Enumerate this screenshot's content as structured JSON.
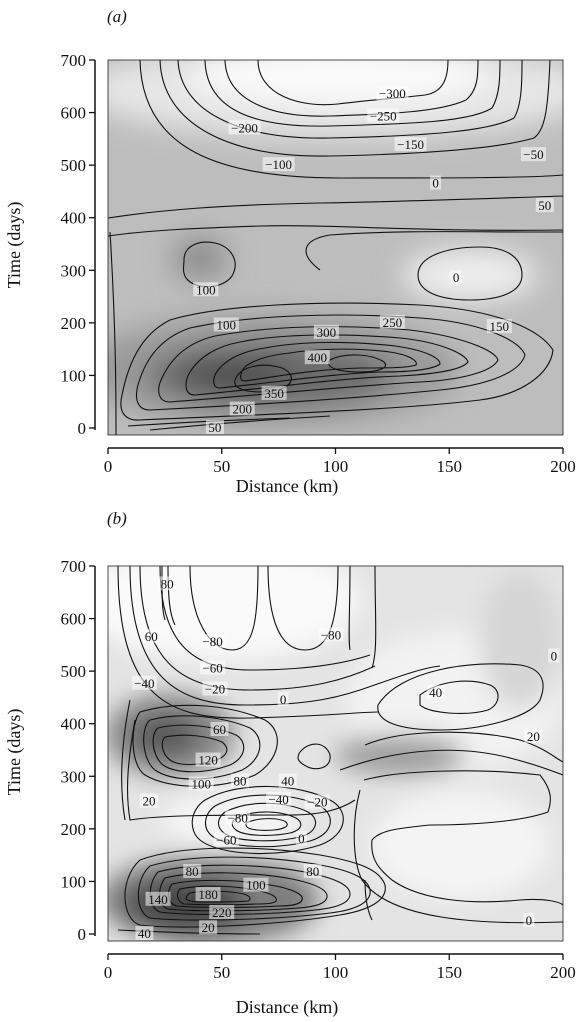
{
  "chart_data": [
    {
      "type": "contour",
      "panel_label": "(a)",
      "xlabel": "Distance (km)",
      "ylabel": "Time (days)",
      "xlim": [
        0,
        200
      ],
      "ylim": [
        0,
        700
      ],
      "x_ticks": [
        0,
        50,
        100,
        150,
        200
      ],
      "y_ticks": [
        0,
        100,
        200,
        300,
        400,
        500,
        600,
        700
      ],
      "contour_labels": [
        {
          "text": "−300",
          "x": 125,
          "y": 635
        },
        {
          "text": "−250",
          "x": 121,
          "y": 593
        },
        {
          "text": "−200",
          "x": 60,
          "y": 570
        },
        {
          "text": "−150",
          "x": 133,
          "y": 538
        },
        {
          "text": "−100",
          "x": 75,
          "y": 500
        },
        {
          "text": "−50",
          "x": 187,
          "y": 519
        },
        {
          "text": "0",
          "x": 144,
          "y": 465
        },
        {
          "text": "50",
          "x": 192,
          "y": 422
        },
        {
          "text": "100",
          "x": 43,
          "y": 262
        },
        {
          "text": "0",
          "x": 153,
          "y": 285
        },
        {
          "text": "100",
          "x": 52,
          "y": 195
        },
        {
          "text": "300",
          "x": 96,
          "y": 181
        },
        {
          "text": "250",
          "x": 125,
          "y": 200
        },
        {
          "text": "150",
          "x": 172,
          "y": 192
        },
        {
          "text": "400",
          "x": 92,
          "y": 133
        },
        {
          "text": "350",
          "x": 73,
          "y": 65
        },
        {
          "text": "200",
          "x": 59,
          "y": 35
        },
        {
          "text": "50",
          "x": 47,
          "y": 0
        }
      ]
    },
    {
      "type": "contour",
      "panel_label": "(b)",
      "xlabel": "Distance (km)",
      "ylabel": "Time (days)",
      "xlim": [
        0,
        200
      ],
      "ylim": [
        0,
        700
      ],
      "x_ticks": [
        0,
        50,
        100,
        150,
        200
      ],
      "y_ticks": [
        0,
        100,
        200,
        300,
        400,
        500,
        600,
        700
      ],
      "contour_labels": [
        {
          "text": "80",
          "x": 26,
          "y": 665
        },
        {
          "text": "60",
          "x": 19,
          "y": 565
        },
        {
          "text": "−80",
          "x": 46,
          "y": 555
        },
        {
          "text": "−80",
          "x": 98,
          "y": 568
        },
        {
          "text": "0",
          "x": 196,
          "y": 528
        },
        {
          "text": "−60",
          "x": 46,
          "y": 505
        },
        {
          "text": "−40",
          "x": 16,
          "y": 476
        },
        {
          "text": "−20",
          "x": 47,
          "y": 465
        },
        {
          "text": "0",
          "x": 77,
          "y": 445
        },
        {
          "text": "40",
          "x": 144,
          "y": 458
        },
        {
          "text": "60",
          "x": 49,
          "y": 388
        },
        {
          "text": "20",
          "x": 187,
          "y": 375
        },
        {
          "text": "120",
          "x": 44,
          "y": 330
        },
        {
          "text": "100",
          "x": 41,
          "y": 284
        },
        {
          "text": "80",
          "x": 58,
          "y": 290
        },
        {
          "text": "40",
          "x": 79,
          "y": 290
        },
        {
          "text": "20",
          "x": 18,
          "y": 252
        },
        {
          "text": "−40",
          "x": 75,
          "y": 255
        },
        {
          "text": "−20",
          "x": 92,
          "y": 250
        },
        {
          "text": "−80",
          "x": 57,
          "y": 220
        },
        {
          "text": "−60",
          "x": 52,
          "y": 178
        },
        {
          "text": "0",
          "x": 85,
          "y": 181
        },
        {
          "text": "80",
          "x": 37,
          "y": 118
        },
        {
          "text": "80",
          "x": 90,
          "y": 118
        },
        {
          "text": "100",
          "x": 65,
          "y": 92
        },
        {
          "text": "140",
          "x": 22,
          "y": 65
        },
        {
          "text": "180",
          "x": 44,
          "y": 74
        },
        {
          "text": "220",
          "x": 50,
          "y": 40
        },
        {
          "text": "20",
          "x": 44,
          "y": 11
        },
        {
          "text": "0",
          "x": 185,
          "y": 25
        },
        {
          "text": "40",
          "x": 16,
          "y": 0
        }
      ]
    }
  ]
}
